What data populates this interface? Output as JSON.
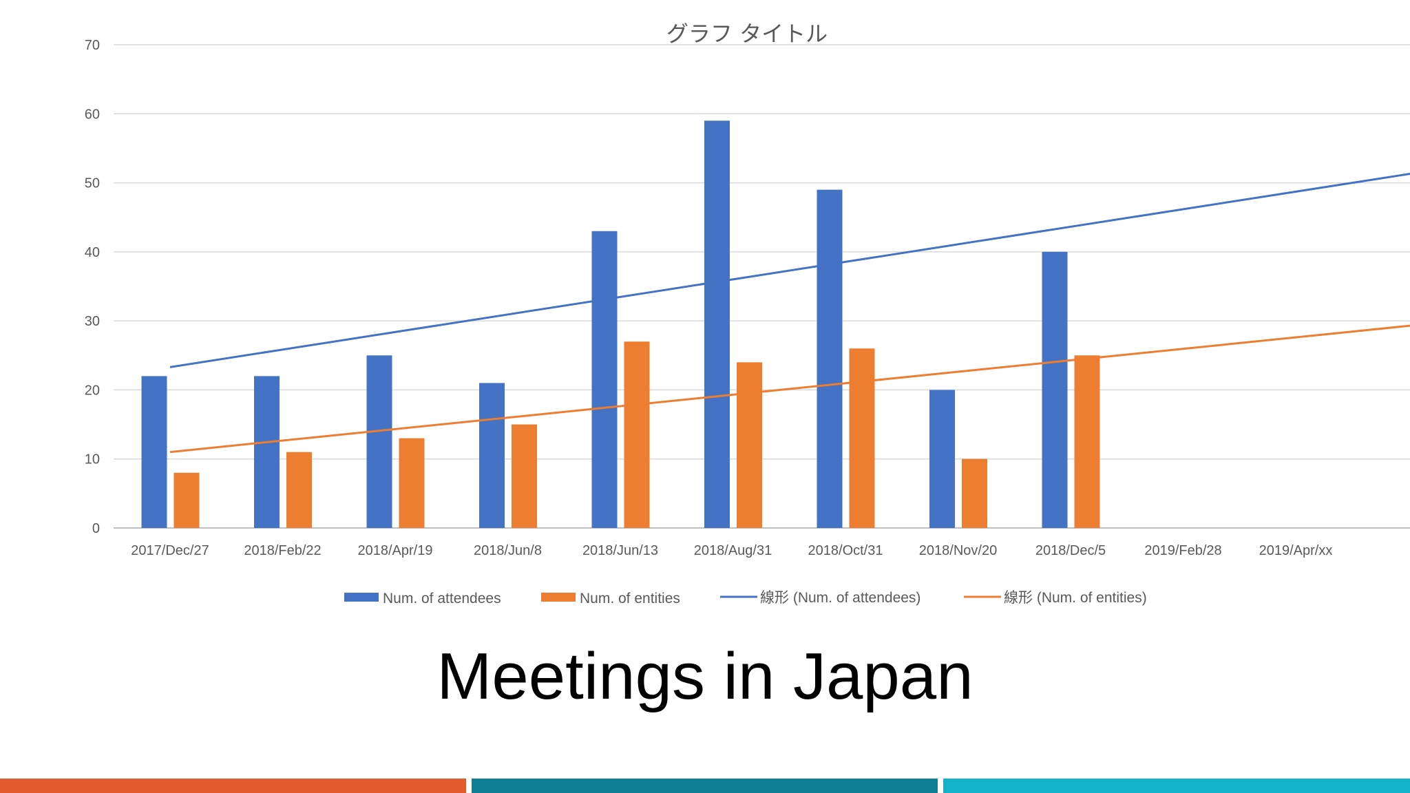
{
  "slide": {
    "title": "Meetings in Japan",
    "footer_colors": [
      "#E35A2C",
      "#0E7F95",
      "#12B3C6"
    ]
  },
  "chart_data": {
    "type": "bar",
    "title": "グラフ タイトル",
    "xlabel": "",
    "ylabel": "",
    "ylim": [
      0,
      70
    ],
    "yticks": [
      0,
      10,
      20,
      30,
      40,
      50,
      60,
      70
    ],
    "grid": true,
    "legend_position": "bottom",
    "categories": [
      "2017/Dec/27",
      "2018/Feb/22",
      "2018/Apr/19",
      "2018/Jun/8",
      "2018/Jun/13",
      "2018/Aug/31",
      "2018/Oct/31",
      "2018/Nov/20",
      "2018/Dec/5",
      "2019/Feb/28",
      "2019/Apr/xx"
    ],
    "series": [
      {
        "name": "Num. of attendees",
        "color": "#4472C4",
        "values": [
          22,
          22,
          25,
          21,
          43,
          59,
          49,
          20,
          40,
          null,
          null
        ]
      },
      {
        "name": "Num. of entities",
        "color": "#ED7D31",
        "values": [
          8,
          11,
          13,
          15,
          27,
          24,
          26,
          10,
          25,
          null,
          null
        ]
      }
    ],
    "trendlines": [
      {
        "name": "線形 (Num. of attendees)",
        "color": "#4472C4",
        "start": 23.3,
        "end": 51.3
      },
      {
        "name": "線形 (Num. of entities)",
        "color": "#ED7D31",
        "start": 11.0,
        "end": 29.3
      }
    ]
  }
}
